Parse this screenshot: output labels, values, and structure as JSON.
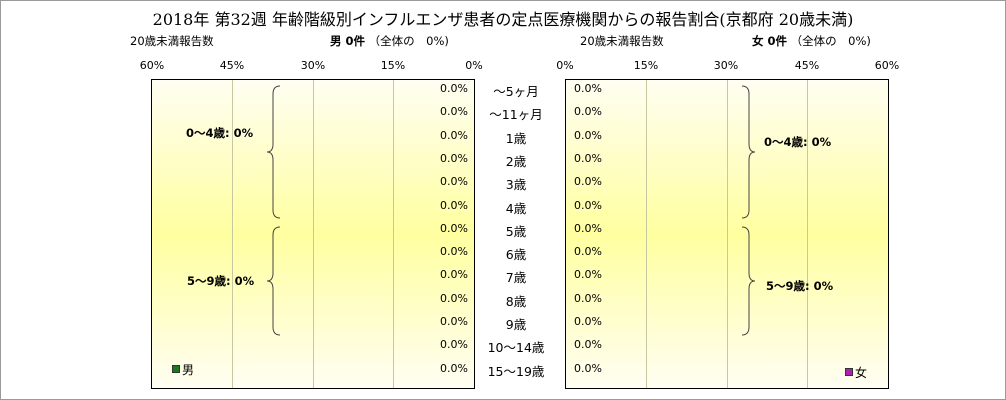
{
  "title": "2018年 第32週 年齢階級別インフルエンザ患者の定点医療機関からの報告割合(京都府 20歳未満)",
  "male": {
    "header_left": "20歳未満報告数",
    "header_bold": "男 0件",
    "header_share": "（全体の　0%)",
    "legend": "男",
    "legend_color": "#1a7a1a",
    "ticks": [
      "60%",
      "45%",
      "30%",
      "15%",
      "0%"
    ],
    "groups": [
      {
        "label": "0～4歳: 0%"
      },
      {
        "label": "5～9歳: 0%"
      }
    ]
  },
  "female": {
    "header_left": "20歳未満報告数",
    "header_bold": "女 0件",
    "header_share": "（全体の　0%)",
    "legend": "女",
    "legend_color": "#b020b0",
    "ticks": [
      "0%",
      "15%",
      "30%",
      "45%",
      "60%"
    ],
    "groups": [
      {
        "label": "0～4歳: 0%"
      },
      {
        "label": "5～9歳: 0%"
      }
    ]
  },
  "chart_data": {
    "type": "bar",
    "orientation": "horizontal-population-pyramid",
    "categories": [
      "～5ヶ月",
      "～11ヶ月",
      "1歳",
      "2歳",
      "3歳",
      "4歳",
      "5歳",
      "6歳",
      "7歳",
      "8歳",
      "9歳",
      "10～14歳",
      "15～19歳"
    ],
    "series": [
      {
        "name": "男",
        "values": [
          0,
          0,
          0,
          0,
          0,
          0,
          0,
          0,
          0,
          0,
          0,
          0,
          0
        ],
        "labels": [
          "0.0%",
          "0.0%",
          "0.0%",
          "0.0%",
          "0.0%",
          "0.0%",
          "0.0%",
          "0.0%",
          "0.0%",
          "0.0%",
          "0.0%",
          "0.0%",
          "0.0%"
        ]
      },
      {
        "name": "女",
        "values": [
          0,
          0,
          0,
          0,
          0,
          0,
          0,
          0,
          0,
          0,
          0,
          0,
          0
        ],
        "labels": [
          "0.0%",
          "0.0%",
          "0.0%",
          "0.0%",
          "0.0%",
          "0.0%",
          "0.0%",
          "0.0%",
          "0.0%",
          "0.0%",
          "0.0%",
          "0.0%",
          "0.0%"
        ]
      }
    ],
    "xlim": [
      0,
      60
    ],
    "unit": "%",
    "grid": true,
    "legend_position": "bottom"
  }
}
